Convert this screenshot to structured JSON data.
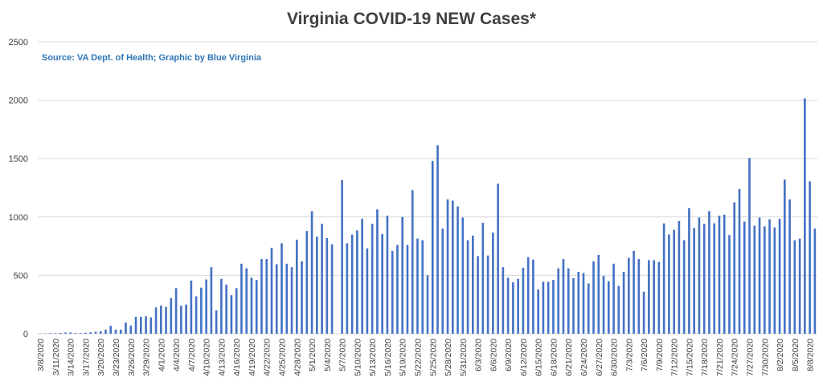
{
  "chart_data": {
    "type": "bar",
    "title": "Virginia COVID-19 NEW Cases*",
    "annotation": "Source: VA Dept. of Health; Graphic by Blue Virginia",
    "xlabel": "",
    "ylabel": "",
    "ylim": [
      0,
      2500
    ],
    "yticks": [
      0,
      500,
      1000,
      1500,
      2000,
      2500
    ],
    "grid": true,
    "bar_color": "#4472C4",
    "tick_labels": [
      "3/8/2020",
      "3/11/2020",
      "3/14/2020",
      "3/17/2020",
      "3/20/2020",
      "3/23/2020",
      "3/26/2020",
      "3/29/2020",
      "4/1/2020",
      "4/4/2020",
      "4/7/2020",
      "4/10/2020",
      "4/13/2020",
      "4/16/2020",
      "4/19/2020",
      "4/22/2020",
      "4/25/2020",
      "4/28/2020",
      "5/1/2020",
      "5/4/2020",
      "5/7/2020",
      "5/10/2020",
      "5/13/2020",
      "5/16/2020",
      "5/19/2020",
      "5/22/2020",
      "5/25/2020",
      "5/28/2020",
      "5/31/2020",
      "6/3/2020",
      "6/6/2020",
      "6/9/2020",
      "6/12/2020",
      "6/15/2020",
      "6/18/2020",
      "6/21/2020",
      "6/24/2020",
      "6/27/2020",
      "6/30/2020",
      "7/3/2020",
      "7/6/2020",
      "7/9/2020",
      "7/12/2020",
      "7/15/2020",
      "7/18/2020",
      "7/21/2020",
      "7/24/2020",
      "7/27/2020",
      "7/30/2020",
      "8/2/2020",
      "8/5/2020",
      "8/8/2020"
    ],
    "categories": [
      "3/8/2020",
      "3/9/2020",
      "3/10/2020",
      "3/11/2020",
      "3/12/2020",
      "3/13/2020",
      "3/14/2020",
      "3/15/2020",
      "3/16/2020",
      "3/17/2020",
      "3/18/2020",
      "3/19/2020",
      "3/20/2020",
      "3/21/2020",
      "3/22/2020",
      "3/23/2020",
      "3/24/2020",
      "3/25/2020",
      "3/26/2020",
      "3/27/2020",
      "3/28/2020",
      "3/29/2020",
      "3/30/2020",
      "3/31/2020",
      "4/1/2020",
      "4/2/2020",
      "4/3/2020",
      "4/4/2020",
      "4/5/2020",
      "4/6/2020",
      "4/7/2020",
      "4/8/2020",
      "4/9/2020",
      "4/10/2020",
      "4/11/2020",
      "4/12/2020",
      "4/13/2020",
      "4/14/2020",
      "4/15/2020",
      "4/16/2020",
      "4/17/2020",
      "4/18/2020",
      "4/19/2020",
      "4/20/2020",
      "4/21/2020",
      "4/22/2020",
      "4/23/2020",
      "4/24/2020",
      "4/25/2020",
      "4/26/2020",
      "4/27/2020",
      "4/28/2020",
      "4/29/2020",
      "4/30/2020",
      "5/1/2020",
      "5/2/2020",
      "5/3/2020",
      "5/4/2020",
      "5/5/2020",
      "5/6/2020",
      "5/7/2020",
      "5/8/2020",
      "5/9/2020",
      "5/10/2020",
      "5/11/2020",
      "5/12/2020",
      "5/13/2020",
      "5/14/2020",
      "5/15/2020",
      "5/16/2020",
      "5/17/2020",
      "5/18/2020",
      "5/19/2020",
      "5/20/2020",
      "5/21/2020",
      "5/22/2020",
      "5/23/2020",
      "5/24/2020",
      "5/25/2020",
      "5/26/2020",
      "5/27/2020",
      "5/28/2020",
      "5/29/2020",
      "5/30/2020",
      "5/31/2020",
      "6/1/2020",
      "6/2/2020",
      "6/3/2020",
      "6/4/2020",
      "6/5/2020",
      "6/6/2020",
      "6/7/2020",
      "6/8/2020",
      "6/9/2020",
      "6/10/2020",
      "6/11/2020",
      "6/12/2020",
      "6/13/2020",
      "6/14/2020",
      "6/15/2020",
      "6/16/2020",
      "6/17/2020",
      "6/18/2020",
      "6/19/2020",
      "6/20/2020",
      "6/21/2020",
      "6/22/2020",
      "6/23/2020",
      "6/24/2020",
      "6/25/2020",
      "6/26/2020",
      "6/27/2020",
      "6/28/2020",
      "6/29/2020",
      "6/30/2020",
      "7/1/2020",
      "7/2/2020",
      "7/3/2020",
      "7/4/2020",
      "7/5/2020",
      "7/6/2020",
      "7/7/2020",
      "7/8/2020",
      "7/9/2020",
      "7/10/2020",
      "7/11/2020",
      "7/12/2020",
      "7/13/2020",
      "7/14/2020",
      "7/15/2020",
      "7/16/2020",
      "7/17/2020",
      "7/18/2020",
      "7/19/2020",
      "7/20/2020",
      "7/21/2020",
      "7/22/2020",
      "7/23/2020",
      "7/24/2020",
      "7/25/2020",
      "7/26/2020",
      "7/27/2020",
      "7/28/2020",
      "7/29/2020",
      "7/30/2020",
      "7/31/2020",
      "8/1/2020",
      "8/2/2020",
      "8/3/2020",
      "8/4/2020",
      "8/5/2020",
      "8/6/2020",
      "8/7/2020",
      "8/8/2020",
      "8/9/2020"
    ],
    "values": [
      2,
      2,
      5,
      5,
      7,
      10,
      11,
      6,
      6,
      9,
      12,
      17,
      20,
      35,
      68,
      35,
      35,
      95,
      70,
      145,
      145,
      150,
      140,
      225,
      240,
      230,
      305,
      390,
      240,
      250,
      455,
      320,
      395,
      465,
      570,
      200,
      470,
      420,
      330,
      390,
      600,
      560,
      480,
      460,
      640,
      640,
      735,
      595,
      775,
      600,
      570,
      805,
      620,
      880,
      1050,
      830,
      940,
      820,
      765,
      0,
      1315,
      775,
      850,
      885,
      985,
      730,
      940,
      1065,
      855,
      1010,
      710,
      760,
      1000,
      760,
      1230,
      815,
      800,
      500,
      1480,
      1615,
      900,
      1150,
      1140,
      1090,
      995,
      800,
      840,
      665,
      950,
      670,
      865,
      1285,
      570,
      480,
      440,
      470,
      565,
      655,
      635,
      380,
      445,
      445,
      460,
      560,
      640,
      560,
      475,
      530,
      520,
      430,
      620,
      675,
      495,
      450,
      600,
      410,
      530,
      650,
      710,
      640,
      360,
      630,
      630,
      615,
      945,
      850,
      890,
      965,
      800,
      1075,
      905,
      995,
      940,
      1050,
      945,
      1010,
      1020,
      845,
      1125,
      1240,
      960,
      1505,
      925,
      995,
      920,
      980,
      910,
      985,
      1320,
      1150,
      800,
      815,
      2015,
      1305,
      900
    ]
  }
}
